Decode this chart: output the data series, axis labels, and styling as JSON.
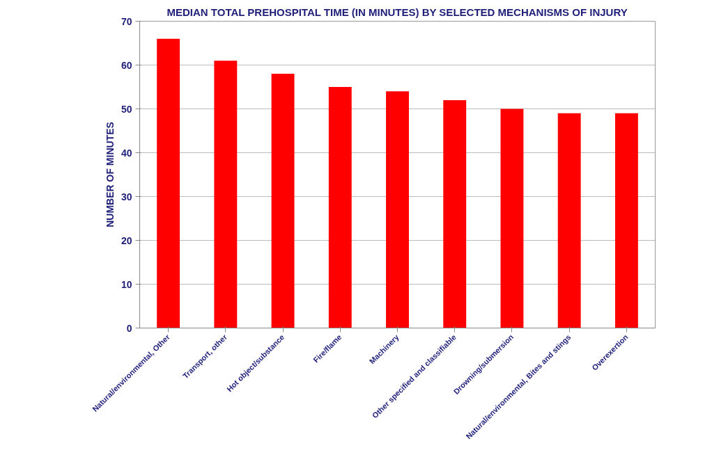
{
  "chart_data": {
    "type": "bar",
    "title": "MEDIAN TOTAL PREHOSPITAL TIME (IN MINUTES) BY SELECTED MECHANISMS OF INJURY",
    "ylabel": "NUMBER OF MINUTES",
    "categories": [
      "Natural/environmental, Other",
      "Transport, other",
      "Hot object/substance",
      "Fire/flame",
      "Machinery",
      "Other specified and classifiable",
      "Drowning/submersion",
      "Natural/environmental, Bites and stings",
      "Overexertion"
    ],
    "values": [
      66,
      61,
      58,
      55,
      54,
      52,
      50,
      49,
      49
    ],
    "color": "#ff0000",
    "ylim": [
      0,
      70
    ],
    "yticks": [
      0,
      10,
      20,
      30,
      40,
      50,
      60,
      70
    ],
    "grid": "y"
  }
}
